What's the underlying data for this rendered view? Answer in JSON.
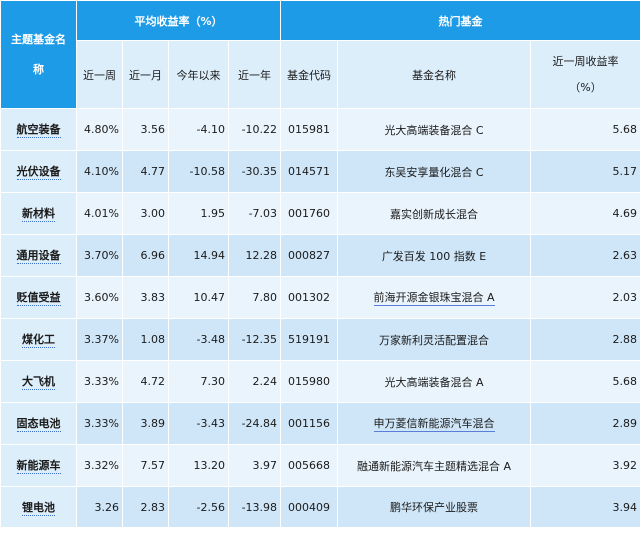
{
  "header": {
    "theme_col": "主题基金名称",
    "avg_group": "平均收益率（%）",
    "hot_group": "热门基金",
    "week": "近一周",
    "month": "近一月",
    "ytd": "今年以来",
    "year": "近一年",
    "code": "基金代码",
    "fund_name": "基金名称",
    "fund_week_line1": "近一周收益率",
    "fund_week_line2": "（%）"
  },
  "rows": [
    {
      "theme": "航空装备",
      "week": "4.80%",
      "month": "3.56",
      "ytd": "-4.10",
      "year": "-10.22",
      "code": "015981",
      "fund": "光大高端装备混合 C",
      "fund_week": "5.68"
    },
    {
      "theme": "光伏设备",
      "week": "4.10%",
      "month": "4.77",
      "ytd": "-10.58",
      "year": "-30.35",
      "code": "014571",
      "fund": "东吴安享量化混合 C",
      "fund_week": "5.17"
    },
    {
      "theme": "新材料",
      "week": "4.01%",
      "month": "3.00",
      "ytd": "1.95",
      "year": "-7.03",
      "code": "001760",
      "fund": "嘉实创新成长混合",
      "fund_week": "4.69"
    },
    {
      "theme": "通用设备",
      "week": "3.70%",
      "month": "6.96",
      "ytd": "14.94",
      "year": "12.28",
      "code": "000827",
      "fund": "广发百发 100 指数 E",
      "fund_week": "2.63"
    },
    {
      "theme": "贬值受益",
      "week": "3.60%",
      "month": "3.83",
      "ytd": "10.47",
      "year": "7.80",
      "code": "001302",
      "fund": "前海开源金银珠宝混合 A",
      "fund_week": "2.03"
    },
    {
      "theme": "煤化工",
      "week": "3.37%",
      "month": "1.08",
      "ytd": "-3.48",
      "year": "-12.35",
      "code": "519191",
      "fund": "万家新利灵活配置混合",
      "fund_week": "2.88"
    },
    {
      "theme": "大飞机",
      "week": "3.33%",
      "month": "4.72",
      "ytd": "7.30",
      "year": "2.24",
      "code": "015980",
      "fund": "光大高端装备混合 A",
      "fund_week": "5.68"
    },
    {
      "theme": "固态电池",
      "week": "3.33%",
      "month": "3.89",
      "ytd": "-3.43",
      "year": "-24.84",
      "code": "001156",
      "fund": "申万菱信新能源汽车混合",
      "fund_week": "2.89"
    },
    {
      "theme": "新能源车",
      "week": "3.32%",
      "month": "7.57",
      "ytd": "13.20",
      "year": "3.97",
      "code": "005668",
      "fund": "融通新能源汽车主题精选混合 A",
      "fund_week": "3.92"
    },
    {
      "theme": "锂电池",
      "week": "3.26",
      "month": "2.83",
      "ytd": "-2.56",
      "year": "-13.98",
      "code": "000409",
      "fund": "鹏华环保产业股票",
      "fund_week": "3.94"
    }
  ]
}
